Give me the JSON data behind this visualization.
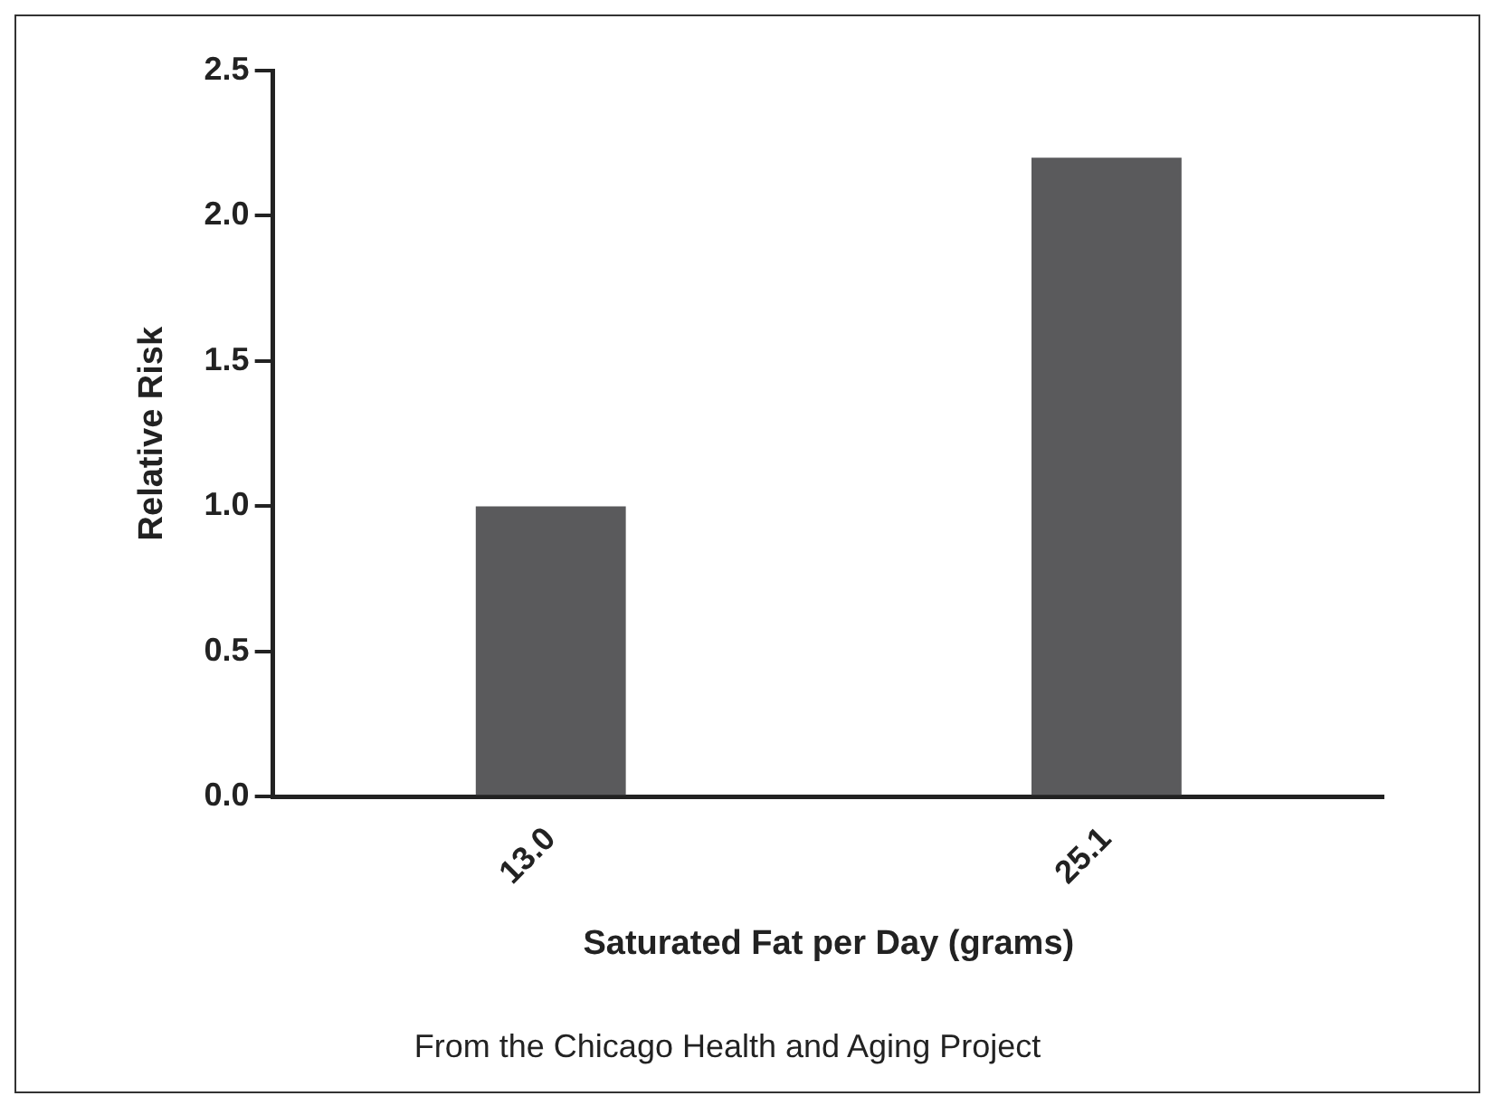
{
  "chart_data": {
    "type": "bar",
    "xlabel": "Saturated Fat per Day (grams)",
    "ylabel": "Relative Risk",
    "categories": [
      "13.0",
      "25.1"
    ],
    "values": [
      1.0,
      2.2
    ],
    "color": "#5a5a5c",
    "ylim": [
      0,
      2.5
    ],
    "yticks": [
      {
        "value": 0,
        "label": "0.0"
      },
      0.5,
      {
        "value": 1,
        "label": "1.0"
      },
      1.5,
      {
        "value": 2,
        "label": "2.0"
      },
      2.5
    ],
    "grid": false,
    "legend": false,
    "annotations": [
      "From the Chicago Health and Aging Project"
    ]
  }
}
